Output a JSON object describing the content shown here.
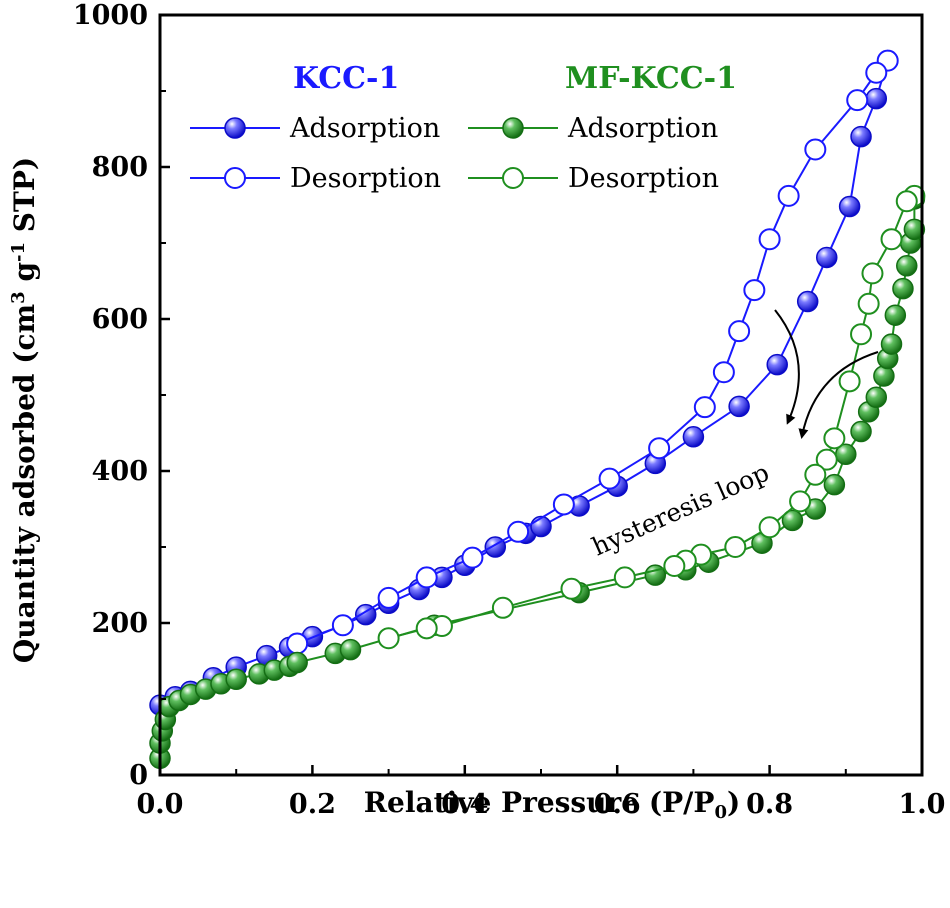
{
  "chart_data": {
    "type": "line",
    "title": "",
    "xlabel": "Relative Pressure (P/P",
    "xlabel_sub": "0",
    "xlabel_close": ")",
    "ylabel": "Quantity adsorbed (cm",
    "ylabel_sup1": "3",
    "ylabel_mid": " g",
    "ylabel_sup2": "-1",
    "ylabel_end": " STP)",
    "xlim": [
      0.0,
      1.0
    ],
    "ylim": [
      0,
      1000
    ],
    "x_ticks": [
      "0.0",
      "0.2",
      "0.4",
      "0.6",
      "0.8",
      "1.0"
    ],
    "y_ticks": [
      "0",
      "200",
      "400",
      "600",
      "800",
      "1000"
    ],
    "grid": false,
    "legend": {
      "groups": [
        {
          "header": "KCC-1",
          "color": "#1a1aff",
          "adsorption": "Adsorption",
          "desorption": "Desorption"
        },
        {
          "header": "MF-KCC-1",
          "color": "#1f8f1f",
          "adsorption": "Adsorption",
          "desorption": "Desorption"
        }
      ]
    },
    "annotation": "hysteresis loop",
    "series": [
      {
        "name": "KCC-1 Adsorption",
        "color": "#1a1aff",
        "marker": "filled",
        "points": [
          [
            0.0,
            92
          ],
          [
            0.02,
            103
          ],
          [
            0.04,
            110
          ],
          [
            0.07,
            128
          ],
          [
            0.1,
            142
          ],
          [
            0.14,
            157
          ],
          [
            0.17,
            168
          ],
          [
            0.2,
            182
          ],
          [
            0.24,
            197
          ],
          [
            0.27,
            211
          ],
          [
            0.3,
            226
          ],
          [
            0.34,
            244
          ],
          [
            0.37,
            260
          ],
          [
            0.4,
            276
          ],
          [
            0.44,
            300
          ],
          [
            0.48,
            318
          ],
          [
            0.5,
            327
          ],
          [
            0.55,
            354
          ],
          [
            0.6,
            380
          ],
          [
            0.65,
            410
          ],
          [
            0.7,
            445
          ],
          [
            0.76,
            485
          ],
          [
            0.81,
            540
          ],
          [
            0.85,
            623
          ],
          [
            0.875,
            681
          ],
          [
            0.905,
            748
          ],
          [
            0.92,
            840
          ],
          [
            0.94,
            890
          ],
          [
            0.955,
            940
          ]
        ]
      },
      {
        "name": "KCC-1 Desorption",
        "color": "#1a1aff",
        "marker": "open",
        "points": [
          [
            0.955,
            940
          ],
          [
            0.94,
            924
          ],
          [
            0.915,
            888
          ],
          [
            0.86,
            823
          ],
          [
            0.825,
            762
          ],
          [
            0.8,
            705
          ],
          [
            0.78,
            638
          ],
          [
            0.76,
            584
          ],
          [
            0.74,
            530
          ],
          [
            0.715,
            484
          ],
          [
            0.655,
            430
          ],
          [
            0.59,
            390
          ],
          [
            0.53,
            356
          ],
          [
            0.47,
            320
          ],
          [
            0.41,
            286
          ],
          [
            0.35,
            260
          ],
          [
            0.3,
            233
          ],
          [
            0.24,
            197
          ],
          [
            0.18,
            173
          ]
        ]
      },
      {
        "name": "MF-KCC-1 Adsorption",
        "color": "#1f8f1f",
        "marker": "filled",
        "points": [
          [
            0.0,
            22
          ],
          [
            0.0,
            42
          ],
          [
            0.003,
            58
          ],
          [
            0.007,
            73
          ],
          [
            0.012,
            90
          ],
          [
            0.025,
            98
          ],
          [
            0.04,
            106
          ],
          [
            0.06,
            113
          ],
          [
            0.08,
            120
          ],
          [
            0.1,
            126
          ],
          [
            0.13,
            133
          ],
          [
            0.15,
            138
          ],
          [
            0.17,
            143
          ],
          [
            0.18,
            148
          ],
          [
            0.23,
            160
          ],
          [
            0.25,
            165
          ],
          [
            0.36,
            197
          ],
          [
            0.55,
            240
          ],
          [
            0.65,
            263
          ],
          [
            0.69,
            270
          ],
          [
            0.72,
            280
          ],
          [
            0.79,
            305
          ],
          [
            0.83,
            335
          ],
          [
            0.86,
            350
          ],
          [
            0.885,
            382
          ],
          [
            0.9,
            422
          ],
          [
            0.92,
            452
          ],
          [
            0.93,
            478
          ],
          [
            0.94,
            497
          ],
          [
            0.95,
            525
          ],
          [
            0.955,
            548
          ],
          [
            0.96,
            567
          ],
          [
            0.965,
            605
          ],
          [
            0.975,
            640
          ],
          [
            0.98,
            670
          ],
          [
            0.985,
            700
          ],
          [
            0.99,
            718
          ],
          [
            0.99,
            758
          ]
        ]
      },
      {
        "name": "MF-KCC-1 Desorption",
        "color": "#1f8f1f",
        "marker": "open",
        "points": [
          [
            0.99,
            762
          ],
          [
            0.98,
            755
          ],
          [
            0.96,
            705
          ],
          [
            0.935,
            660
          ],
          [
            0.93,
            620
          ],
          [
            0.92,
            580
          ],
          [
            0.905,
            518
          ],
          [
            0.885,
            443
          ],
          [
            0.875,
            415
          ],
          [
            0.86,
            395
          ],
          [
            0.84,
            360
          ],
          [
            0.8,
            326
          ],
          [
            0.755,
            300
          ],
          [
            0.71,
            290
          ],
          [
            0.69,
            282
          ],
          [
            0.675,
            275
          ],
          [
            0.61,
            260
          ],
          [
            0.54,
            245
          ],
          [
            0.45,
            220
          ],
          [
            0.37,
            196
          ],
          [
            0.35,
            193
          ],
          [
            0.3,
            180
          ]
        ]
      }
    ]
  }
}
